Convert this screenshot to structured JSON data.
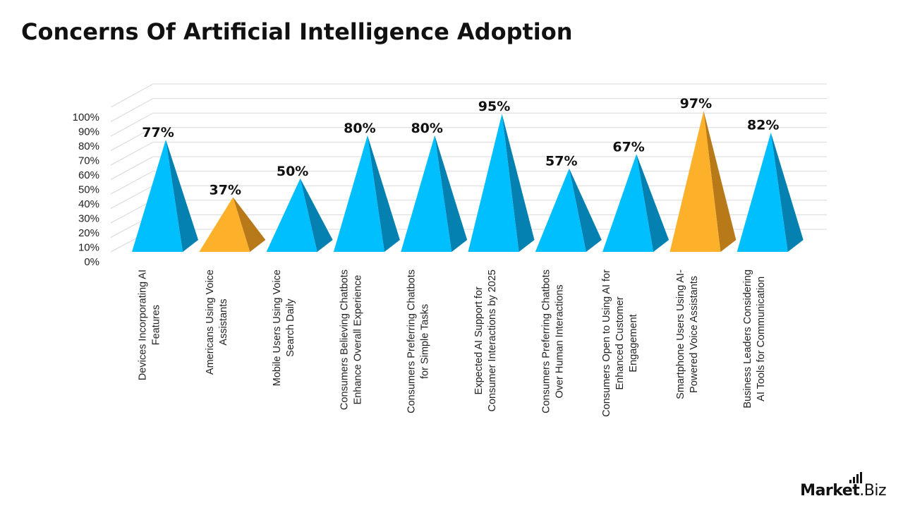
{
  "page_title": "Concerns Of Artificial Intelligence Adoption",
  "brand": {
    "name": "Market",
    "suffix": ".Biz"
  },
  "colors": {
    "blue": "#00BFFF",
    "blue_dark": "#0481B1",
    "gold": "#FDB02A",
    "gold_dark": "#B87A19",
    "grid": "#d9d9d9",
    "text": "#222222"
  },
  "chart_data": {
    "type": "bar",
    "style": "3d-pyramid",
    "title": "Concerns Of Artificial Intelligence Adoption",
    "ylim": [
      0,
      100
    ],
    "y_tick_labels": [
      "0%",
      "10%",
      "20%",
      "30%",
      "40%",
      "50%",
      "60%",
      "70%",
      "80%",
      "90%",
      "100%"
    ],
    "grid": true,
    "categories": [
      "Devices Incorporating AI Features",
      "Americans Using Voice Assistants",
      "Mobile Users Using Voice Search Daily",
      "Consumers Believing Chatbots Enhance Overall Experience",
      "Consumers Preferring Chatbots for Simple Tasks",
      "Expected AI Support for Consumer Interactions by 2025",
      "Consumers Preferring Chatbots Over Human Interactions",
      "Consumers Open to Using AI for Enhanced Customer Engagement",
      "Smartphone Users Using AI-Powered Voice Assistants",
      "Business Leaders Considering AI Tools for Communication"
    ],
    "category_label_lines": [
      [
        "Devices Incorporating AI",
        "Features"
      ],
      [
        "Americans Using Voice",
        "Assistants"
      ],
      [
        "Mobile Users Using Voice",
        "Search Daily"
      ],
      [
        "Consumers Believing Chatbots",
        "Enhance Overall Experience"
      ],
      [
        "Consumers Preferring Chatbots",
        "for Simple Tasks"
      ],
      [
        "Expected AI Support for",
        "Consumer Interactions by 2025"
      ],
      [
        "Consumers Preferring Chatbots",
        "Over Human Interactions"
      ],
      [
        "Consumers Open to Using AI for",
        "Enhanced Customer",
        "Engagement"
      ],
      [
        "Smartphone Users Using AI-",
        "Powered Voice Assistants"
      ],
      [
        "Business Leaders Considering",
        "AI Tools for Communication"
      ]
    ],
    "values": [
      77,
      37,
      50,
      80,
      80,
      95,
      57,
      67,
      97,
      82
    ],
    "data_labels": [
      "77%",
      "37%",
      "50%",
      "80%",
      "80%",
      "95%",
      "57%",
      "67%",
      "97%",
      "82%"
    ],
    "bar_colors": [
      "blue",
      "gold",
      "blue",
      "blue",
      "blue",
      "blue",
      "blue",
      "blue",
      "gold",
      "blue"
    ]
  }
}
